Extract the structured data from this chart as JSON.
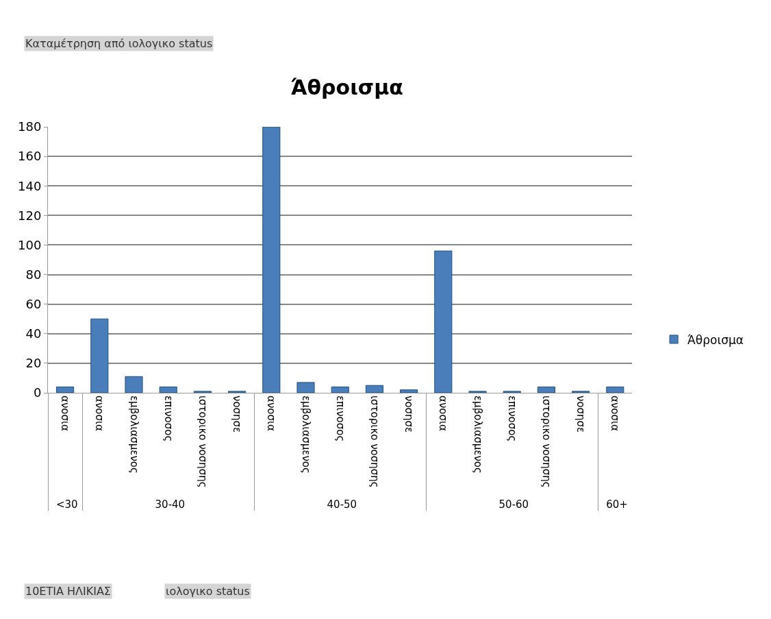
{
  "chart_data": {
    "type": "bar",
    "title": "Άθροισμα",
    "categories": [
      [
        "<30",
        "ανοσια"
      ],
      [
        "30-40",
        "ανοσια"
      ],
      [
        null,
        "εμβολιασμενος"
      ],
      [
        null,
        "επινοσος"
      ],
      [
        null,
        "ιστορικο νοσησης"
      ],
      [
        null,
        "νοσησε"
      ],
      [
        "40-50",
        "ανοσια"
      ],
      [
        null,
        "εμβολιασμενος"
      ],
      [
        null,
        "επινοσος"
      ],
      [
        null,
        "ιστορικο νοσησης"
      ],
      [
        null,
        "νοσησε"
      ],
      [
        "50-60",
        "ανοσια"
      ],
      [
        null,
        "εμβολιασμενος"
      ],
      [
        null,
        "επινοσος"
      ],
      [
        null,
        "ιστορικο νοσησης"
      ],
      [
        null,
        "νοσησε"
      ],
      [
        "60+",
        "ανοσια"
      ]
    ],
    "series": [
      {
        "name": "Άθροισμα",
        "color": "#4a7ebb",
        "values": [
          4,
          50,
          11,
          4,
          1,
          1,
          180,
          7,
          4,
          5,
          2,
          96,
          1,
          1,
          4,
          1,
          4
        ]
      }
    ],
    "ylim": [
      0,
      180
    ],
    "yticks": [
      0,
      20,
      40,
      60,
      80,
      100,
      120,
      140,
      160,
      180
    ],
    "grid": "y",
    "legend": "right",
    "annotations": [
      "Καταμέτρηση από ιολογικο status",
      "10ΕΤΙΑ ΗΛΙΚΙΑΣ",
      "ιολογικο status"
    ]
  }
}
